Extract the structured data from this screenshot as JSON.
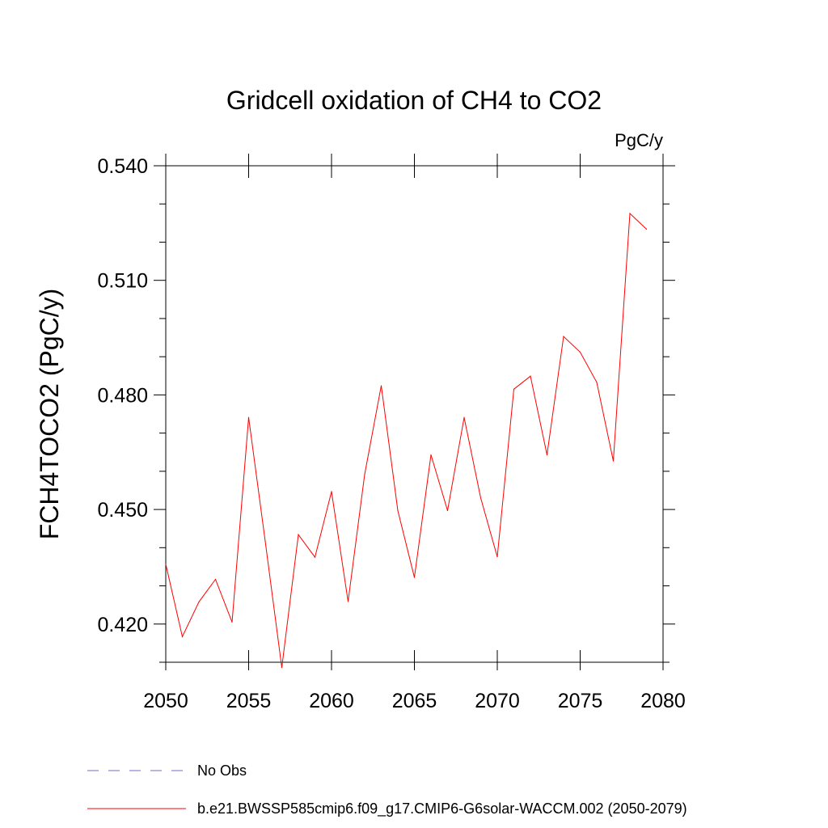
{
  "chart_data": {
    "type": "line",
    "title": "Gridcell oxidation of CH4 to CO2",
    "units": "PgC/y",
    "ylabel": "FCH4TOCO2  (PgC/y)",
    "xlabel": "",
    "xlim": [
      2050,
      2080
    ],
    "ylim": [
      0.41,
      0.54
    ],
    "x_ticks": [
      2050,
      2055,
      2060,
      2065,
      2070,
      2075,
      2080
    ],
    "y_ticks": [
      0.42,
      0.45,
      0.48,
      0.51,
      0.54
    ],
    "x_tick_labels": [
      "2050",
      "2055",
      "2060",
      "2065",
      "2070",
      "2075",
      "2080"
    ],
    "y_tick_labels": [
      "0.420",
      "0.450",
      "0.480",
      "0.510",
      "0.540"
    ],
    "series": [
      {
        "name": "b.e21.BWSSP585cmip6.f09_g17.CMIP6-G6solar-WACCM.002 (2050-2079)",
        "color": "#ff0000",
        "style": "solid",
        "x": [
          2050,
          2051,
          2052,
          2053,
          2054,
          2055,
          2056,
          2057,
          2058,
          2059,
          2060,
          2061,
          2062,
          2063,
          2064,
          2065,
          2066,
          2067,
          2068,
          2069,
          2070,
          2071,
          2072,
          2073,
          2074,
          2075,
          2076,
          2077,
          2078,
          2079
        ],
        "values": [
          0.4357,
          0.4167,
          0.4258,
          0.4317,
          0.4205,
          0.4741,
          0.4417,
          0.4086,
          0.4434,
          0.4375,
          0.4547,
          0.4259,
          0.4592,
          0.4824,
          0.4497,
          0.4322,
          0.4643,
          0.4497,
          0.4741,
          0.453,
          0.4376,
          0.4815,
          0.4849,
          0.4643,
          0.4953,
          0.4912,
          0.4833,
          0.4627,
          0.5275,
          0.5234
        ]
      }
    ],
    "legend": [
      {
        "label": "No Obs",
        "color": "#7b68c8",
        "style": "dashed"
      },
      {
        "label": "b.e21.BWSSP585cmip6.f09_g17.CMIP6-G6solar-WACCM.002 (2050-2079)",
        "color": "#ff0000",
        "style": "solid"
      }
    ],
    "legend_position": "bottom-left"
  }
}
